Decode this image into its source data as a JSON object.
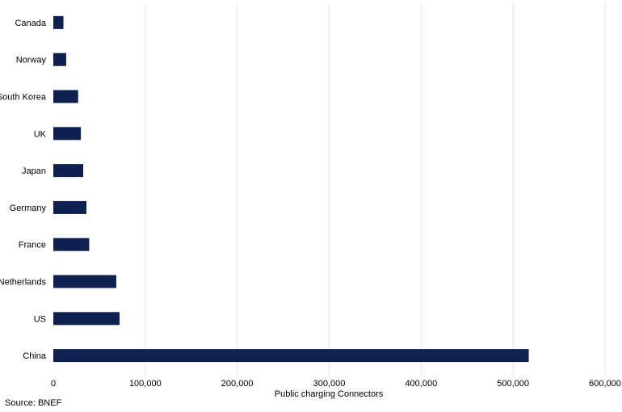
{
  "chart_data": {
    "type": "bar",
    "orientation": "horizontal",
    "categories": [
      "Canada",
      "Norway",
      "South Korea",
      "UK",
      "Japan",
      "Germany",
      "France",
      "Netherlands",
      "US",
      "China"
    ],
    "values": [
      11000,
      14000,
      27000,
      30000,
      32500,
      36000,
      39000,
      68500,
      72000,
      517000
    ],
    "xlabel": "Public charging Connectors",
    "xlim": [
      0,
      600000
    ],
    "xticks": [
      0,
      100000,
      200000,
      300000,
      400000,
      500000,
      600000
    ],
    "xtick_labels": [
      "0",
      "100,000",
      "200,000",
      "300,000",
      "400,000",
      "500,000",
      "600,000"
    ],
    "grid": "vertical",
    "bar_color": "#0e2150",
    "source": "Source: BNEF"
  }
}
